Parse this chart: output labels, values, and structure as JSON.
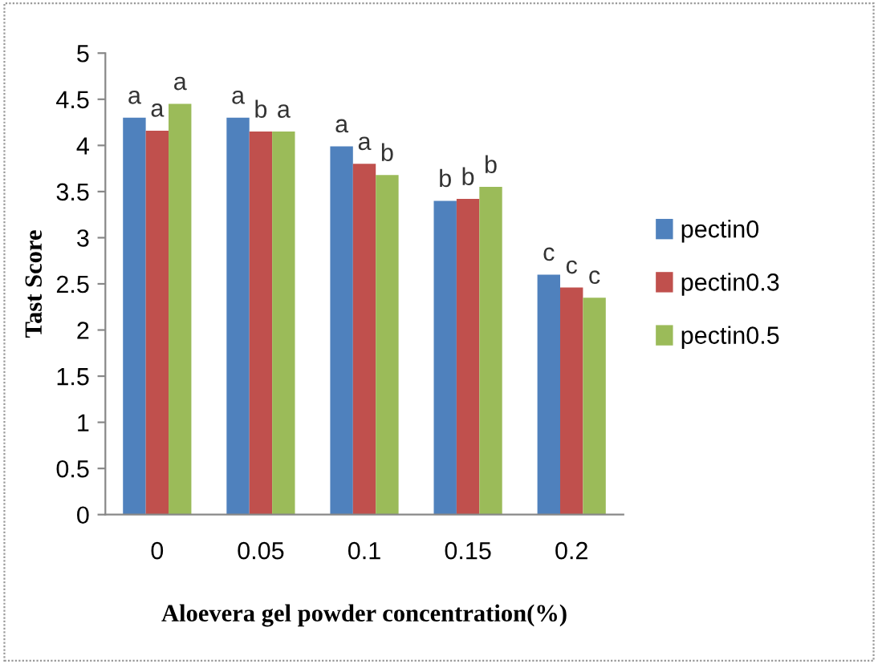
{
  "chart_data": {
    "type": "bar",
    "xlabel": "Aloevera gel powder concentration(%)",
    "ylabel": "Tast Score",
    "categories": [
      "0",
      "0.05",
      "0.1",
      "0.15",
      "0.2"
    ],
    "series": [
      {
        "name": "pectin0",
        "color": "#4f81bd",
        "values": [
          4.3,
          4.3,
          3.99,
          3.4,
          2.6
        ],
        "value_labels": [
          "a",
          "a",
          "a",
          "b",
          "c"
        ]
      },
      {
        "name": "pectin0.3",
        "color": "#c0504d",
        "values": [
          4.16,
          4.15,
          3.8,
          3.42,
          2.46
        ],
        "value_labels": [
          "a",
          "b",
          "a",
          "b",
          "c"
        ]
      },
      {
        "name": "pectin0.5",
        "color": "#9bbb59",
        "values": [
          4.45,
          4.15,
          3.68,
          3.55,
          2.35
        ],
        "value_labels": [
          "a",
          "a",
          "b",
          "b",
          "c"
        ]
      }
    ],
    "ylim": [
      0,
      5
    ],
    "yticks": [
      0,
      0.5,
      1,
      1.5,
      2,
      2.5,
      3,
      3.5,
      4,
      4.5,
      5
    ],
    "grid": false,
    "legend": "right"
  }
}
